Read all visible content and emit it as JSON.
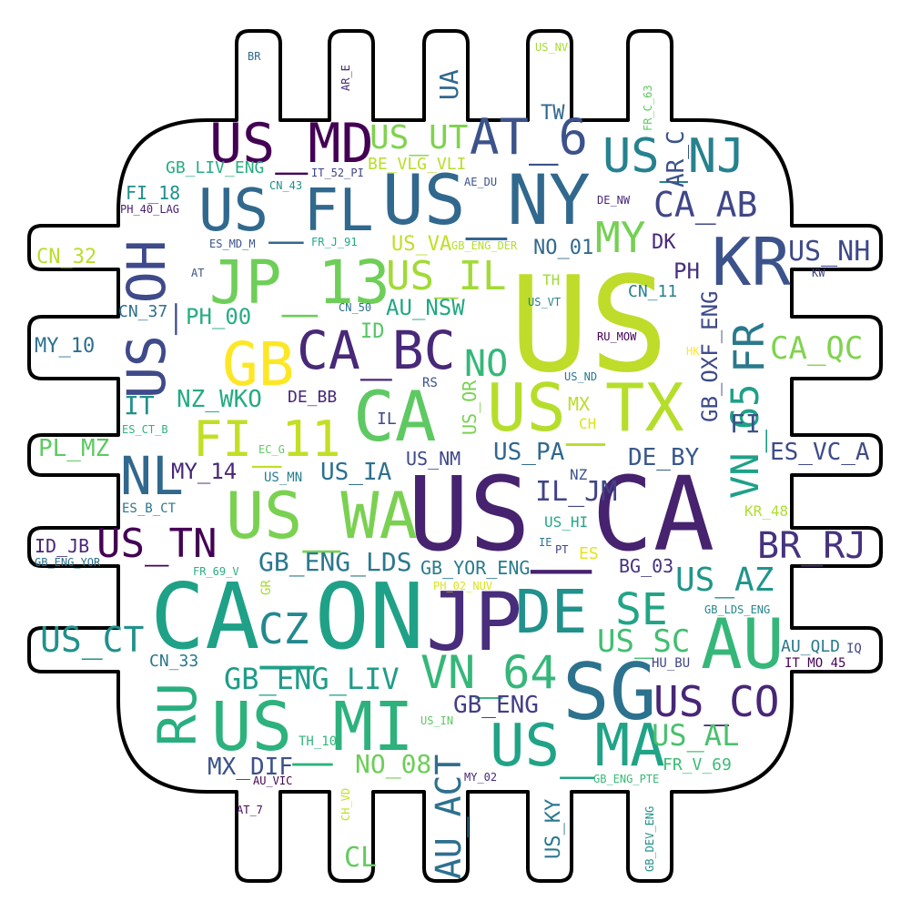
{
  "palette": {
    "background": "#ffffff",
    "outline": "#000000",
    "word_colors": [
      "#440154",
      "#472c7a",
      "#3b518b",
      "#2c718e",
      "#21908d",
      "#27ad81",
      "#5cc863",
      "#aadc32",
      "#fde725"
    ]
  },
  "shape": "chip-with-pins",
  "words": [
    {
      "text": "US",
      "color": "#bfdc2b"
    },
    {
      "text": "US_CA",
      "color": "#46226f"
    },
    {
      "text": "CA_ON",
      "color": "#1fa187"
    },
    {
      "text": "US_NY",
      "color": "#31688e"
    },
    {
      "text": "US_MI",
      "color": "#2db27d"
    },
    {
      "text": "JP",
      "color": "#472d7b"
    },
    {
      "text": "SG",
      "color": "#2c728e"
    },
    {
      "text": "US_TX",
      "color": "#b5de2b"
    },
    {
      "text": "CA",
      "color": "#5ec962"
    },
    {
      "text": "US_WA",
      "color": "#7ad151"
    },
    {
      "text": "KR",
      "color": "#3b528b"
    },
    {
      "text": "JP_13",
      "color": "#6ece58"
    },
    {
      "text": "US_MA",
      "color": "#20a386"
    },
    {
      "text": "AU",
      "color": "#35b779"
    },
    {
      "text": "DE",
      "color": "#21918c"
    },
    {
      "text": "CA_BC",
      "color": "#482878"
    },
    {
      "text": "US_FL",
      "color": "#31688e"
    },
    {
      "text": "US_MD",
      "color": "#440154"
    },
    {
      "text": "GB",
      "color": "#fde725"
    },
    {
      "text": "FI_11",
      "color": "#c2df23"
    },
    {
      "text": "US_OH",
      "color": "#3e4a89"
    },
    {
      "text": "RU",
      "color": "#29af7f"
    },
    {
      "text": "VN_64",
      "color": "#35b779"
    },
    {
      "text": "NL",
      "color": "#31688e"
    },
    {
      "text": "AT_6",
      "color": "#3b528b"
    },
    {
      "text": "US_NJ",
      "color": "#26828e"
    },
    {
      "text": "US_CO",
      "color": "#482677"
    },
    {
      "text": "SE",
      "color": "#21a585"
    },
    {
      "text": "CZ",
      "color": "#23898e"
    },
    {
      "text": "VN_65",
      "color": "#1fa187"
    },
    {
      "text": "FR",
      "color": "#2a788e"
    },
    {
      "text": "MY",
      "color": "#75d054"
    },
    {
      "text": "US_IL",
      "color": "#a2da37"
    },
    {
      "text": "US_TN",
      "color": "#440154"
    },
    {
      "text": "BR_RJ",
      "color": "#46337e"
    },
    {
      "text": "US_UT",
      "color": "#7fd34e"
    },
    {
      "text": "CA_AB",
      "color": "#404688"
    },
    {
      "text": "US_AZ",
      "color": "#1f958b"
    },
    {
      "text": "GB_ENG_LIV",
      "color": "#1e9c89"
    },
    {
      "text": "CA_QC",
      "color": "#7fd34e"
    },
    {
      "text": "US_CT",
      "color": "#21918c"
    },
    {
      "text": "AU_ACT",
      "color": "#2d708e"
    },
    {
      "text": "US_SC",
      "color": "#42be71"
    },
    {
      "text": "US_AL",
      "color": "#4ac16d"
    },
    {
      "text": "US_NH",
      "color": "#3e4989"
    },
    {
      "text": "GB_ENG_LDS",
      "color": "#2a788e"
    },
    {
      "text": "IL_JM",
      "color": "#414487"
    },
    {
      "text": "NO",
      "color": "#35b779"
    },
    {
      "text": "NO_08",
      "color": "#6ece58"
    },
    {
      "text": "MX_DIF",
      "color": "#3b528b"
    },
    {
      "text": "GB_ENG",
      "color": "#433e85"
    },
    {
      "text": "US_IA",
      "color": "#2c718e"
    },
    {
      "text": "US_PA",
      "color": "#31688e"
    },
    {
      "text": "DE_BY",
      "color": "#38588c"
    },
    {
      "text": "ES_VC_A",
      "color": "#3e4c8a"
    },
    {
      "text": "CL",
      "color": "#62cb5f"
    },
    {
      "text": "PL_MZ",
      "color": "#5ec962"
    },
    {
      "text": "NZ_WKO",
      "color": "#25ab82"
    },
    {
      "text": "MY_14",
      "color": "#482878"
    },
    {
      "text": "PH_00",
      "color": "#27ad81"
    },
    {
      "text": "AU_NSW",
      "color": "#22a884"
    },
    {
      "text": "GB_OXF_ENG",
      "color": "#3e4a89"
    },
    {
      "text": "US_KY",
      "color": "#2a788e"
    },
    {
      "text": "US_VA",
      "color": "#c0df25"
    },
    {
      "text": "US_OR",
      "color": "#7ad151"
    },
    {
      "text": "US_NM",
      "color": "#3e4989"
    },
    {
      "text": "GB_YOR_ENG",
      "color": "#2a7b8e"
    },
    {
      "text": "GB_LIV_ENG",
      "color": "#26ad81"
    },
    {
      "text": "BE_VLG_VLI",
      "color": "#b8de29"
    },
    {
      "text": "AR_C",
      "color": "#3b528b"
    },
    {
      "text": "FI_18",
      "color": "#21918c"
    },
    {
      "text": "CN_32",
      "color": "#b8de29"
    },
    {
      "text": "MY_10",
      "color": "#2d708e"
    },
    {
      "text": "CN_37",
      "color": "#2d708e"
    },
    {
      "text": "CN_11",
      "color": "#27808e"
    },
    {
      "text": "CN_33",
      "color": "#2a788e"
    },
    {
      "text": "UA",
      "color": "#31688e"
    },
    {
      "text": "TW",
      "color": "#31688e"
    },
    {
      "text": "IT",
      "color": "#21918c"
    },
    {
      "text": "FI",
      "color": "#3b528b"
    },
    {
      "text": "DK",
      "color": "#482878"
    },
    {
      "text": "PH",
      "color": "#46327e"
    },
    {
      "text": "NO_01",
      "color": "#31688e"
    },
    {
      "text": "BG_03",
      "color": "#45347f"
    },
    {
      "text": "AU_QLD",
      "color": "#2a788e"
    },
    {
      "text": "FR_V_69",
      "color": "#3dbc74"
    },
    {
      "text": "ID_JB",
      "color": "#482878"
    },
    {
      "text": "ID",
      "color": "#55c667"
    },
    {
      "text": "DE_BB",
      "color": "#482878"
    },
    {
      "text": "MX",
      "color": "#bade28"
    },
    {
      "text": "TH",
      "color": "#a0da39"
    },
    {
      "text": "CH",
      "color": "#dde318"
    },
    {
      "text": "IL",
      "color": "#3e4989"
    },
    {
      "text": "ES",
      "color": "#e5e419"
    },
    {
      "text": "NZ",
      "color": "#3b528b"
    },
    {
      "text": "US_HI",
      "color": "#22a884"
    },
    {
      "text": "US_MN",
      "color": "#277f8e"
    },
    {
      "text": "KR_48",
      "color": "#b0dd2f"
    },
    {
      "text": "HU_BU",
      "color": "#404688"
    },
    {
      "text": "IT_MO_45",
      "color": "#440154"
    },
    {
      "text": "IQ",
      "color": "#404688"
    },
    {
      "text": "TH_10",
      "color": "#31b57b"
    },
    {
      "text": "AU_VIC",
      "color": "#440154"
    },
    {
      "text": "MY_02",
      "color": "#482878"
    },
    {
      "text": "GB_ENG_PTE",
      "color": "#38b977"
    },
    {
      "text": "US_IN",
      "color": "#5ec962"
    },
    {
      "text": "CH_VD",
      "color": "#c2df23"
    },
    {
      "text": "AT_7",
      "color": "#46085c"
    },
    {
      "text": "GB_DEV_ENG",
      "color": "#21918c"
    },
    {
      "text": "GB_LDS_ENG",
      "color": "#24868e"
    },
    {
      "text": "PH_02_NUV",
      "color": "#dae319"
    },
    {
      "text": "FR_69_V",
      "color": "#29af7f"
    },
    {
      "text": "GR",
      "color": "#a5db36"
    },
    {
      "text": "GB_ENG_YOR",
      "color": "#2c718e"
    },
    {
      "text": "ES_B_CT",
      "color": "#2a788e"
    },
    {
      "text": "EC_G",
      "color": "#5ec962"
    },
    {
      "text": "ES_CT_B",
      "color": "#2db27d"
    },
    {
      "text": "RS",
      "color": "#3b528b"
    },
    {
      "text": "US_ND",
      "color": "#2a788e"
    },
    {
      "text": "HK",
      "color": "#fde725"
    },
    {
      "text": "RU_MOW",
      "color": "#440154"
    },
    {
      "text": "US_VT",
      "color": "#26828e"
    },
    {
      "text": "CN_50",
      "color": "#2d708e"
    },
    {
      "text": "AT",
      "color": "#3b528b"
    },
    {
      "text": "KW",
      "color": "#414487"
    },
    {
      "text": "GB_ENG_DER",
      "color": "#b5de2b"
    },
    {
      "text": "FR_J_91",
      "color": "#22a884"
    },
    {
      "text": "ES_MD_M",
      "color": "#3b528b"
    },
    {
      "text": "PH_40_LAG",
      "color": "#481f70"
    },
    {
      "text": "CN_43",
      "color": "#21918c"
    },
    {
      "text": "IT_52_PI",
      "color": "#414487"
    },
    {
      "text": "AE_DU",
      "color": "#3b528b"
    },
    {
      "text": "DE_NW",
      "color": "#482878"
    },
    {
      "text": "FR_C_63",
      "color": "#5ec962"
    },
    {
      "text": "AR_E",
      "color": "#482878"
    },
    {
      "text": "BR",
      "color": "#31688e"
    },
    {
      "text": "US_NV",
      "color": "#a8db34"
    },
    {
      "text": "PT",
      "color": "#414487"
    },
    {
      "text": "IE",
      "color": "#2a788e"
    }
  ]
}
